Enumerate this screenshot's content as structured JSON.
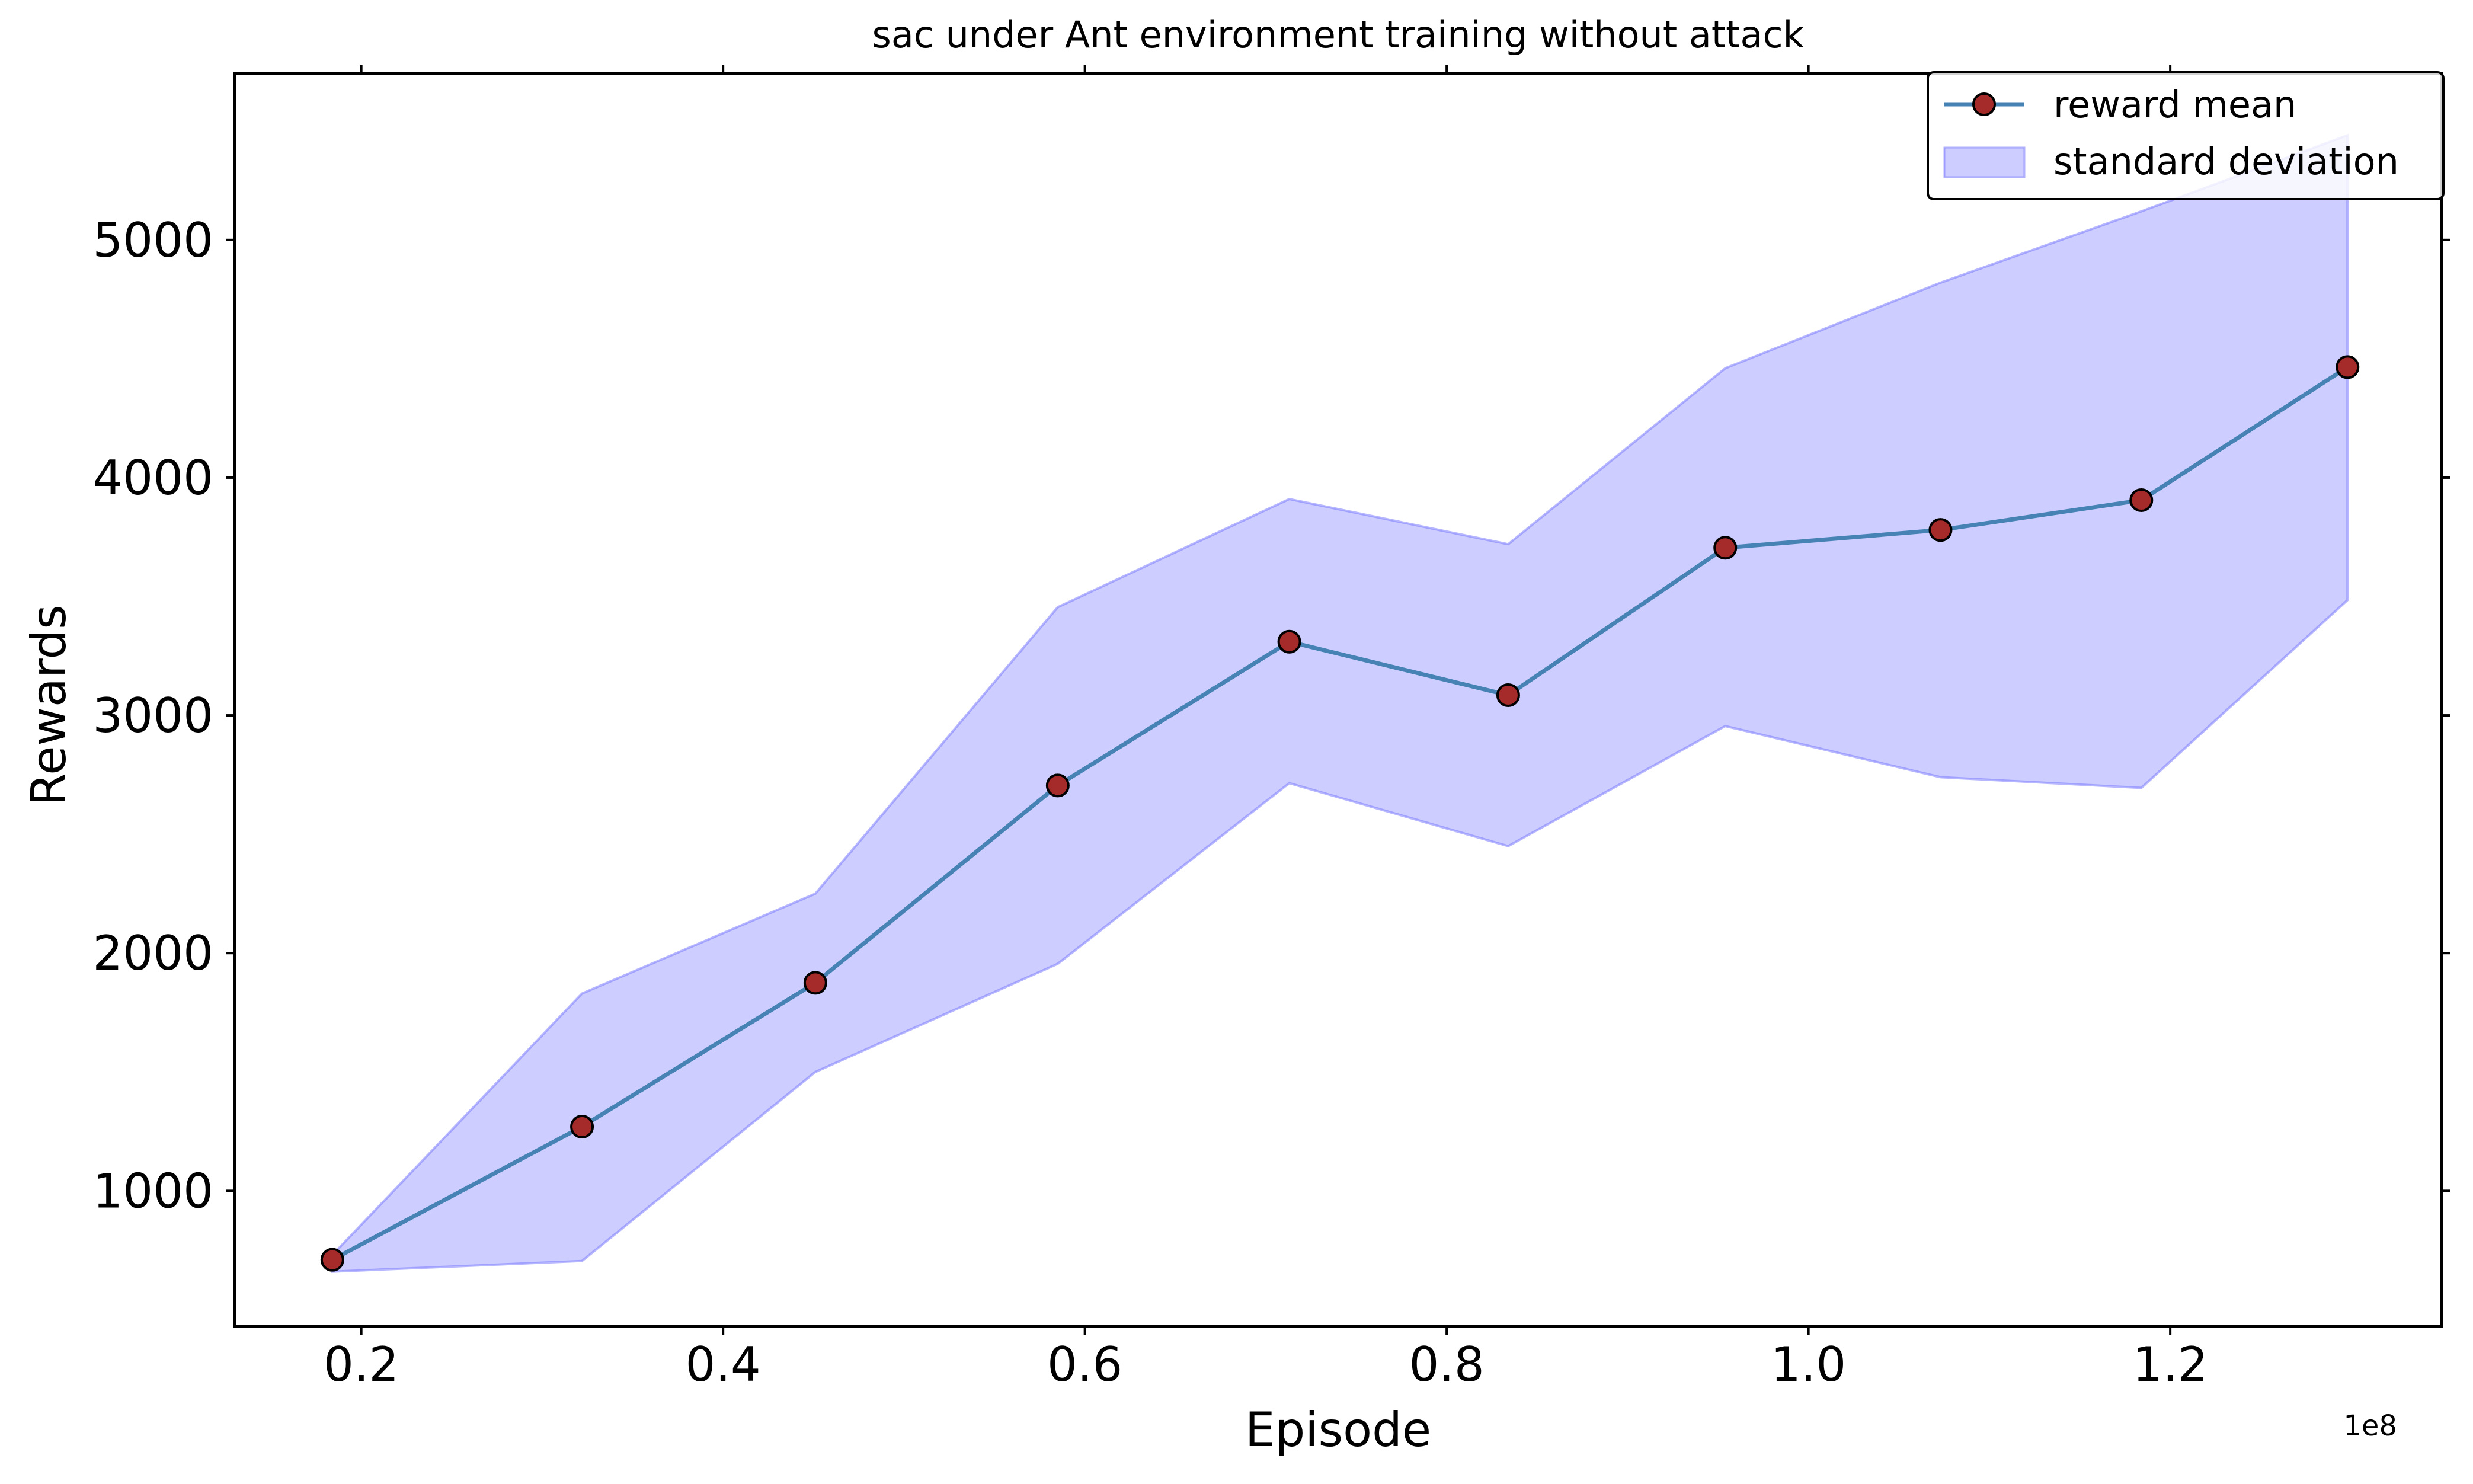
{
  "chart_data": {
    "type": "line",
    "title": "sac under Ant environment training without attack",
    "xlabel": "Episode",
    "ylabel": "Rewards",
    "x_offset_label": "1e8",
    "x_scale": 100000000,
    "xlim": [
      0.13,
      1.35
    ],
    "ylim": [
      430,
      5700
    ],
    "x_ticks": [
      0.2,
      0.4,
      0.6,
      0.8,
      1.0,
      1.2
    ],
    "x_tick_labels": [
      "0.2",
      "0.4",
      "0.6",
      "0.8",
      "1.0",
      "1.2"
    ],
    "y_ticks": [
      1000,
      2000,
      3000,
      4000,
      5000
    ],
    "y_tick_labels": [
      "1000",
      "2000",
      "3000",
      "4000",
      "5000"
    ],
    "grid": false,
    "legend_position": "top-right",
    "x": [
      0.184,
      0.322,
      0.451,
      0.585,
      0.713,
      0.834,
      0.954,
      1.073,
      1.184,
      1.298
    ],
    "series": [
      {
        "name": "reward mean",
        "values": [
          710,
          1270,
          1875,
          2705,
          3310,
          3085,
          3705,
          3780,
          3905,
          4465
        ],
        "line_color": "#4682b4",
        "marker_color": "#a52a2a"
      }
    ],
    "band": {
      "name": "standard deviation",
      "upper": [
        730,
        1830,
        2250,
        3455,
        3910,
        3720,
        4460,
        4820,
        5120,
        5440
      ],
      "lower": [
        660,
        705,
        1500,
        1955,
        2715,
        2450,
        2955,
        2740,
        2695,
        3485
      ],
      "color": "#7b7bff"
    },
    "legend": [
      {
        "label": "reward mean",
        "kind": "line-marker"
      },
      {
        "label": "standard deviation",
        "kind": "patch"
      }
    ]
  }
}
